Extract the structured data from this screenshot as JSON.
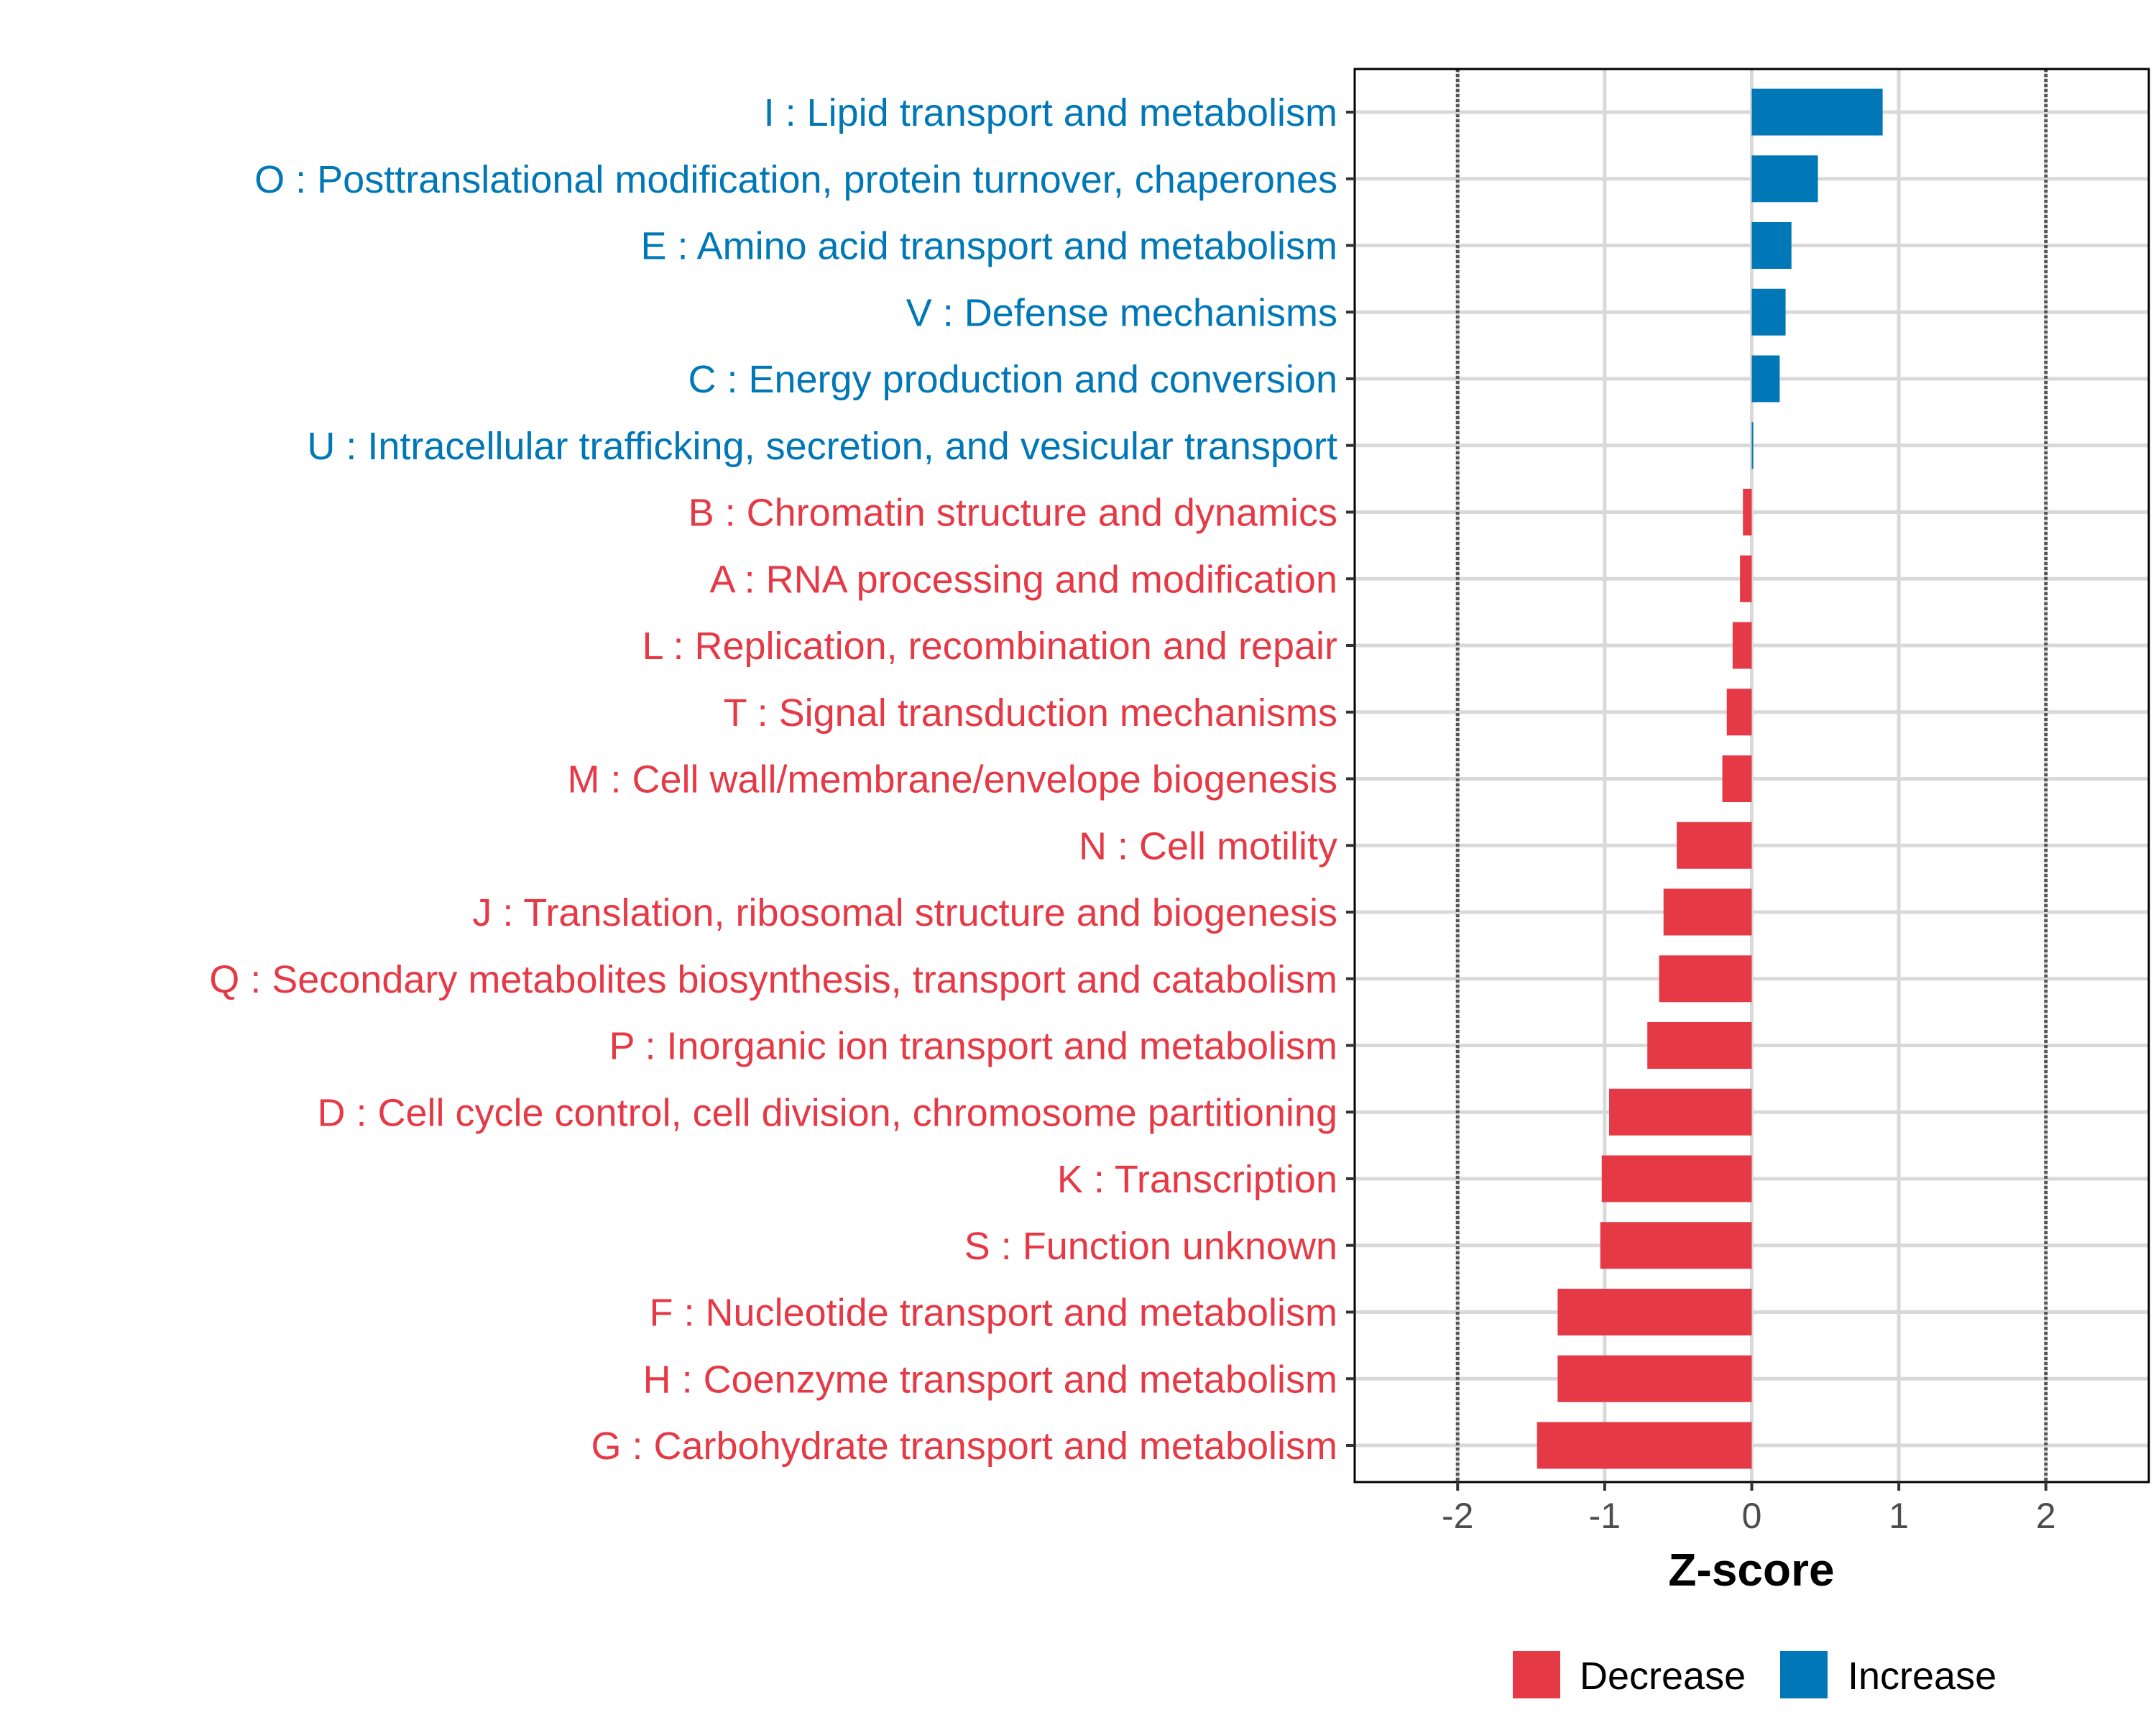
{
  "chart_data": {
    "type": "bar",
    "orientation": "horizontal",
    "title": "",
    "xlabel": "Z-score",
    "ylabel": "",
    "xlim": [
      -2.7,
      2.7
    ],
    "xticks": [
      -2,
      -1,
      0,
      1,
      2
    ],
    "xtick_labels": [
      "-2",
      "-1",
      "0",
      "1",
      "2"
    ],
    "reference_lines": [
      -2,
      2
    ],
    "grid": true,
    "colors": {
      "Decrease": "#E63946",
      "Increase": "#0077B6"
    },
    "categories": [
      "I : Lipid transport and metabolism",
      "O : Posttranslational modification, protein turnover, chaperones",
      "E : Amino acid transport and metabolism",
      "V : Defense mechanisms",
      "C : Energy production and conversion",
      "U : Intracellular trafficking, secretion, and vesicular transport",
      "B : Chromatin structure and dynamics",
      "A : RNA processing and modification",
      "L : Replication, recombination and repair",
      "T : Signal transduction mechanisms",
      "M : Cell wall/membrane/envelope biogenesis",
      "N : Cell motility",
      "J : Translation, ribosomal structure and biogenesis",
      "Q : Secondary metabolites biosynthesis, transport and catabolism",
      "P : Inorganic ion transport and metabolism",
      "D : Cell cycle control, cell division, chromosome partitioning",
      "K : Transcription",
      "S : Function unknown",
      "F : Nucleotide transport and metabolism",
      "H : Coenzyme transport and metabolism",
      "G : Carbohydrate transport and metabolism"
    ],
    "values": [
      0.89,
      0.45,
      0.27,
      0.23,
      0.19,
      0.01,
      -0.06,
      -0.08,
      -0.13,
      -0.17,
      -0.2,
      -0.51,
      -0.6,
      -0.63,
      -0.71,
      -0.97,
      -1.02,
      -1.03,
      -1.32,
      -1.32,
      -1.46
    ],
    "legend": {
      "position": "bottom",
      "entries": [
        "Decrease",
        "Increase"
      ]
    }
  }
}
